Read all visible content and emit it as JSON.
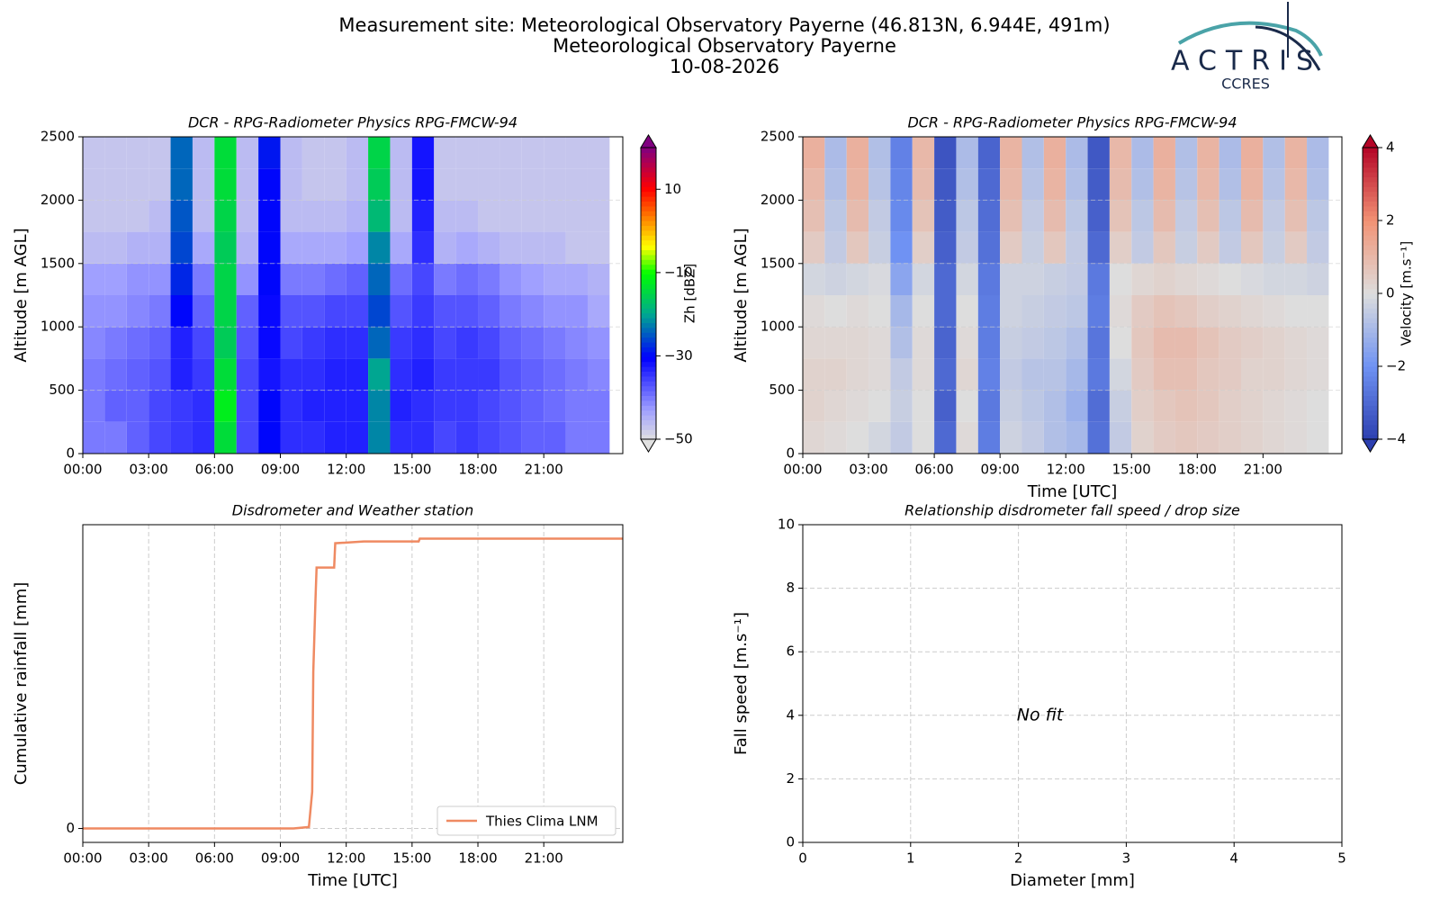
{
  "header": {
    "lines": [
      "Measurement site: Meteorological Observatory Payerne (46.813N, 6.944E, 491m)",
      "Meteorological Observatory Payerne",
      "10-08-2026"
    ]
  },
  "logo": {
    "name": "ACTRIS",
    "subtitle": "CCRES"
  },
  "chart_data": [
    {
      "type": "heatmap",
      "title": "DCR - RPG-Radiometer Physics RPG-FMCW-94",
      "ylabel": "Altitude [m AGL]",
      "x": [
        0,
        1,
        2,
        3,
        4,
        5,
        6,
        7,
        8,
        9,
        10,
        11,
        12,
        13,
        14,
        15,
        16,
        17,
        18,
        19,
        20,
        21,
        22,
        23
      ],
      "y": [
        0,
        250,
        500,
        750,
        1000,
        1250,
        1500,
        1750,
        2000,
        2250
      ],
      "values": [
        [
          -40,
          -40,
          -38,
          -36,
          -35,
          -34,
          -14,
          -36,
          -30,
          -34,
          -34,
          -33,
          -33,
          -22,
          -34,
          -34,
          -36,
          -35,
          -36,
          -37,
          -38,
          -38,
          -40,
          -40
        ],
        [
          -40,
          -38,
          -38,
          -36,
          -35,
          -34,
          -12,
          -36,
          -30,
          -34,
          -33,
          -33,
          -33,
          -22,
          -33,
          -34,
          -35,
          -35,
          -36,
          -37,
          -38,
          -39,
          -40,
          -40
        ],
        [
          -40,
          -39,
          -38,
          -37,
          -33,
          -35,
          -14,
          -36,
          -32,
          -34,
          -34,
          -33,
          -33,
          -20,
          -34,
          -33,
          -35,
          -35,
          -35,
          -37,
          -38,
          -39,
          -40,
          -41
        ],
        [
          -41,
          -40,
          -39,
          -38,
          -33,
          -36,
          -16,
          -37,
          -31,
          -36,
          -35,
          -34,
          -34,
          -24,
          -35,
          -34,
          -36,
          -35,
          -36,
          -38,
          -39,
          -40,
          -41,
          -42
        ],
        [
          -42,
          -42,
          -41,
          -40,
          -30,
          -38,
          -15,
          -38,
          -31,
          -37,
          -37,
          -36,
          -36,
          -26,
          -37,
          -35,
          -37,
          -37,
          -38,
          -40,
          -41,
          -42,
          -42,
          -44
        ],
        [
          -43,
          -43,
          -42,
          -42,
          -28,
          -40,
          -15,
          -42,
          -30,
          -40,
          -40,
          -39,
          -38,
          -24,
          -39,
          -36,
          -40,
          -39,
          -40,
          -42,
          -43,
          -44,
          -44,
          -45
        ],
        [
          -46,
          -46,
          -45,
          -45,
          -26,
          -44,
          -16,
          -45,
          -30,
          -44,
          -44,
          -44,
          -43,
          -22,
          -44,
          -34,
          -45,
          -44,
          -45,
          -46,
          -46,
          -46,
          -47,
          -47
        ],
        [
          -47,
          -47,
          -47,
          -46,
          -25,
          -46,
          -15,
          -46,
          -30,
          -46,
          -46,
          -46,
          -45,
          -18,
          -46,
          -33,
          -46,
          -46,
          -47,
          -47,
          -47,
          -47,
          -47,
          -47
        ],
        [
          -47,
          -47,
          -47,
          -47,
          -24,
          -46,
          -14,
          -46,
          -30,
          -46,
          -47,
          -47,
          -46,
          -16,
          -46,
          -32,
          -47,
          -47,
          -47,
          -47,
          -47,
          -47,
          -47,
          -47
        ],
        [
          -47,
          -47,
          -47,
          -47,
          -24,
          -46,
          -14,
          -46,
          -29,
          -46,
          -47,
          -47,
          -46,
          -15,
          -46,
          -32,
          -47,
          -47,
          -47,
          -47,
          -47,
          -47,
          -47,
          -47
        ]
      ],
      "xlim": [
        0,
        24.6
      ],
      "xticks": [
        {
          "value": 0,
          "label": "00:00"
        },
        {
          "value": 3,
          "label": "03:00"
        },
        {
          "value": 6,
          "label": "06:00"
        },
        {
          "value": 9,
          "label": "09:00"
        },
        {
          "value": 12,
          "label": "12:00"
        },
        {
          "value": 15,
          "label": "15:00"
        },
        {
          "value": 18,
          "label": "18:00"
        },
        {
          "value": 21,
          "label": "21:00"
        }
      ],
      "ylim": [
        0,
        2500
      ],
      "yticks": [
        0,
        500,
        1000,
        1500,
        2000,
        2500
      ],
      "grid": true,
      "colorbar": {
        "label": "Zh [dBZ]",
        "colormap": "rainbow",
        "lim": [
          -50,
          20
        ],
        "ticks": [
          {
            "value": -50,
            "label": "−50"
          },
          {
            "value": -30,
            "label": "−30"
          },
          {
            "value": -10,
            "label": "−10"
          },
          10
        ]
      }
    },
    {
      "type": "heatmap",
      "title": "DCR - RPG-Radiometer Physics RPG-FMCW-94",
      "ylabel": "Altitude [m AGL]",
      "xlabel": "Time [UTC]",
      "x": [
        0,
        1,
        2,
        3,
        4,
        5,
        6,
        7,
        8,
        9,
        10,
        11,
        12,
        13,
        14,
        15,
        16,
        17,
        18,
        19,
        20,
        21,
        22,
        23
      ],
      "y": [
        0,
        250,
        500,
        750,
        1000,
        1250,
        1500,
        1750,
        2000,
        2250
      ],
      "values": [
        [
          0.2,
          0.1,
          0,
          -0.2,
          -0.5,
          0,
          -3,
          0.1,
          -2.5,
          -0.3,
          -0.5,
          -0.8,
          -1,
          -2.8,
          -0.5,
          0.3,
          0.5,
          0.6,
          0.5,
          0.4,
          0.3,
          0.2,
          0.1,
          0
        ],
        [
          0.3,
          0.2,
          0.1,
          0,
          -0.4,
          0,
          -3.2,
          0,
          -2.6,
          -0.4,
          -0.6,
          -0.8,
          -1.2,
          -2.9,
          -0.4,
          0.4,
          0.6,
          0.7,
          0.6,
          0.4,
          0.3,
          0.2,
          0.1,
          0
        ],
        [
          0.3,
          0.3,
          0.2,
          0.1,
          -0.5,
          0.1,
          -3,
          0.2,
          -2.4,
          -0.5,
          -0.7,
          -0.7,
          -1,
          -2.6,
          -0.2,
          0.5,
          0.8,
          0.8,
          0.6,
          0.5,
          0.3,
          0.3,
          0.2,
          0.1
        ],
        [
          0.2,
          0.2,
          0.2,
          0.1,
          -0.8,
          0.1,
          -3.1,
          0.1,
          -2.5,
          -0.4,
          -0.5,
          -0.6,
          -0.8,
          -2.7,
          0,
          0.6,
          0.9,
          0.9,
          0.7,
          0.5,
          0.4,
          0.3,
          0.2,
          0.1
        ],
        [
          0.1,
          0,
          0.1,
          0,
          -1,
          0,
          -3,
          0,
          -2.5,
          -0.3,
          -0.4,
          -0.5,
          -0.6,
          -2.5,
          0.1,
          0.5,
          0.7,
          0.6,
          0.4,
          0.3,
          0.2,
          0.1,
          0,
          0
        ],
        [
          -0.2,
          -0.3,
          -0.2,
          -0.1,
          -1.5,
          -0.2,
          -3,
          -0.2,
          -2.6,
          -0.3,
          -0.3,
          -0.4,
          -0.5,
          -2.6,
          0,
          0.2,
          0.3,
          0.2,
          0.1,
          0,
          -0.1,
          -0.2,
          -0.2,
          -0.3
        ],
        [
          0.5,
          -0.5,
          0.6,
          -0.4,
          -2,
          0.4,
          -3.2,
          -0.5,
          -2.8,
          0.5,
          -0.4,
          0.6,
          -0.5,
          -3,
          0.4,
          -0.5,
          0.6,
          -0.4,
          0.5,
          -0.5,
          0.6,
          -0.4,
          0.5,
          -0.5
        ],
        [
          0.8,
          -0.6,
          0.9,
          -0.5,
          -2.2,
          0.7,
          -3.3,
          -0.6,
          -2.9,
          0.8,
          -0.5,
          0.9,
          -0.6,
          -3.2,
          0.7,
          -0.6,
          0.9,
          -0.5,
          0.8,
          -0.6,
          0.9,
          -0.5,
          0.8,
          -0.6
        ],
        [
          1,
          -0.8,
          1.1,
          -0.7,
          -2.3,
          0.9,
          -3.4,
          -0.8,
          -3,
          1,
          -0.7,
          1.1,
          -0.8,
          -3.3,
          0.9,
          -0.8,
          1.1,
          -0.7,
          1,
          -0.8,
          1.1,
          -0.7,
          1,
          -0.8
        ],
        [
          1.2,
          -0.9,
          1.2,
          -0.8,
          -2.4,
          1,
          -3.5,
          -0.9,
          -3.1,
          1.1,
          -0.8,
          1.2,
          -0.9,
          -3.4,
          1,
          -0.9,
          1.2,
          -0.8,
          1.1,
          -0.9,
          1.2,
          -0.8,
          1.1,
          -0.9
        ]
      ],
      "xlim": [
        0,
        24.6
      ],
      "xticks": [
        {
          "value": 0,
          "label": "00:00"
        },
        {
          "value": 3,
          "label": "03:00"
        },
        {
          "value": 6,
          "label": "06:00"
        },
        {
          "value": 9,
          "label": "09:00"
        },
        {
          "value": 12,
          "label": "12:00"
        },
        {
          "value": 15,
          "label": "15:00"
        },
        {
          "value": 18,
          "label": "18:00"
        },
        {
          "value": 21,
          "label": "21:00"
        }
      ],
      "ylim": [
        0,
        2500
      ],
      "yticks": [
        0,
        500,
        1000,
        1500,
        2000,
        2500
      ],
      "grid": true,
      "colorbar": {
        "label": "Velocity [m.s⁻¹]",
        "colormap": "coolwarm",
        "lim": [
          -4,
          4
        ],
        "ticks": [
          {
            "value": -4,
            "label": "−4"
          },
          {
            "value": -2,
            "label": "−2"
          },
          0,
          2,
          4
        ]
      }
    },
    {
      "type": "line",
      "title": "Disdrometer and Weather station",
      "xlabel": "Time [UTC]",
      "ylabel": "Cumulative rainfall [mm]",
      "x": [
        0,
        9.6,
        10.3,
        10.45,
        10.5,
        10.6,
        10.65,
        11.45,
        11.5,
        12.8,
        15.3,
        15.35,
        24.6
      ],
      "series": [
        {
          "name": "Thies Clima LNM",
          "color": "#ef8a62",
          "values": [
            0,
            0,
            0.05,
            1.27,
            5.4,
            7.9,
            9.0,
            9.0,
            9.84,
            9.9,
            9.9,
            10.0,
            10.0
          ]
        }
      ],
      "xlim": [
        0,
        24.6
      ],
      "xticks": [
        {
          "value": 0,
          "label": "00:00"
        },
        {
          "value": 3,
          "label": "03:00"
        },
        {
          "value": 6,
          "label": "06:00"
        },
        {
          "value": 9,
          "label": "09:00"
        },
        {
          "value": 12,
          "label": "12:00"
        },
        {
          "value": 15,
          "label": "15:00"
        },
        {
          "value": 18,
          "label": "18:00"
        },
        {
          "value": 21,
          "label": "21:00"
        }
      ],
      "ylim": [
        -0.48,
        10.48
      ],
      "yticks": [
        0
      ],
      "grid": true,
      "legend": "lower right"
    },
    {
      "type": "scatter",
      "title": "Relationship disdrometer fall speed / drop size",
      "xlabel": "Diameter [mm]",
      "ylabel": "Fall speed [m.s⁻¹]",
      "xlim": [
        0,
        5
      ],
      "xticks": [
        0,
        1,
        2,
        3,
        4,
        5
      ],
      "ylim": [
        0,
        10
      ],
      "yticks": [
        0,
        2,
        4,
        6,
        8,
        10
      ],
      "grid": true,
      "annotation": "No fit"
    }
  ]
}
